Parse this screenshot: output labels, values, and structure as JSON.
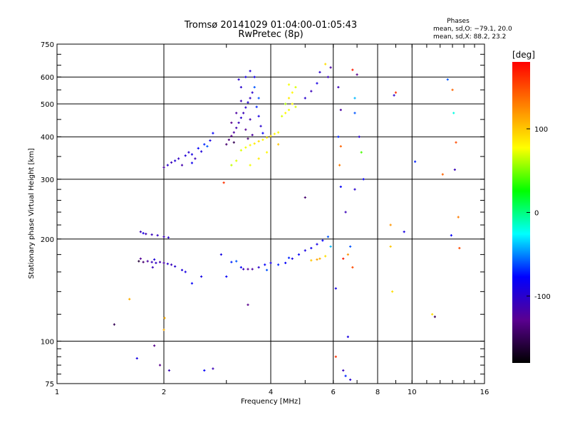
{
  "chart_data": {
    "type": "scatter",
    "title": "Tromsø 20141029 01:04:00-01:05:43",
    "subtitle": "RwPretec (8p)",
    "xlabel": "Frequency [MHz]",
    "ylabel": "Stationary phase Virtual Height [km]",
    "x_scale": "log",
    "y_scale": "log",
    "xlim": [
      1,
      16
    ],
    "ylim": [
      75,
      750
    ],
    "x_ticks": [
      1,
      2,
      4,
      6,
      8,
      10,
      16
    ],
    "y_ticks": [
      75,
      100,
      200,
      300,
      400,
      500,
      600,
      750
    ],
    "grid": true,
    "stats": {
      "heading": "Phases",
      "line_o": "mean, sd,O: −79.1, 20.0",
      "line_x": "mean, sd,X:  88.2, 23.2"
    },
    "colorbar": {
      "unit": "[deg]",
      "range": [
        -180,
        180
      ],
      "ticks": [
        100,
        0,
        -100
      ],
      "colors": [
        "#000000",
        "#5a0090",
        "#0000ff",
        "#00ffff",
        "#00ff00",
        "#ffff00",
        "#ff8000",
        "#ff0000"
      ]
    },
    "series": [
      {
        "points": [
          [
            1.72,
            210,
            -110
          ],
          [
            1.78,
            207,
            -112
          ],
          [
            1.85,
            206,
            -108
          ],
          [
            1.92,
            205,
            -105
          ],
          [
            2.0,
            203,
            -110
          ],
          [
            2.06,
            202,
            -100
          ],
          [
            1.75,
            208,
            -90
          ],
          [
            1.7,
            172,
            -160
          ],
          [
            1.75,
            171,
            -140
          ],
          [
            1.8,
            172,
            -120
          ],
          [
            1.85,
            171,
            -110
          ],
          [
            1.9,
            170,
            -105
          ],
          [
            1.95,
            171,
            -115
          ],
          [
            2.0,
            170,
            -120
          ],
          [
            2.05,
            169,
            -100
          ],
          [
            2.1,
            168,
            -110
          ],
          [
            2.15,
            166,
            -100
          ],
          [
            2.25,
            162,
            -95
          ],
          [
            2.3,
            160,
            -90
          ],
          [
            1.72,
            175,
            -125
          ],
          [
            1.88,
            174,
            -95
          ],
          [
            3.1,
            171,
            -70
          ],
          [
            3.2,
            172,
            -60
          ],
          [
            3.3,
            165,
            -80
          ],
          [
            3.35,
            163,
            -110
          ],
          [
            3.45,
            163,
            -125
          ],
          [
            3.55,
            163,
            -120
          ],
          [
            3.7,
            165,
            -100
          ],
          [
            3.85,
            168,
            -80
          ],
          [
            4.0,
            170,
            -90
          ],
          [
            4.2,
            168,
            -70
          ],
          [
            4.4,
            170,
            -80
          ],
          [
            4.6,
            175,
            -90
          ],
          [
            4.8,
            180,
            -80
          ],
          [
            5.0,
            185,
            -90
          ],
          [
            5.2,
            188,
            -85
          ],
          [
            5.4,
            193,
            -90
          ],
          [
            5.6,
            198,
            -80
          ],
          [
            5.8,
            203,
            -60
          ],
          [
            5.9,
            190,
            -40
          ],
          [
            5.7,
            178,
            90
          ],
          [
            5.5,
            175,
            110
          ],
          [
            5.4,
            174,
            115
          ],
          [
            5.2,
            173,
            100
          ],
          [
            3.9,
            162,
            -60
          ],
          [
            4.5,
            176,
            -70
          ],
          [
            2.05,
            330,
            -100
          ],
          [
            2.1,
            336,
            -110
          ],
          [
            2.15,
            340,
            -95
          ],
          [
            2.0,
            325,
            -120
          ],
          [
            2.2,
            345,
            -105
          ],
          [
            2.3,
            352,
            -95
          ],
          [
            2.35,
            360,
            -100
          ],
          [
            2.4,
            355,
            -90
          ],
          [
            2.5,
            370,
            -80
          ],
          [
            2.55,
            362,
            -95
          ],
          [
            2.6,
            380,
            -70
          ],
          [
            2.45,
            345,
            -110
          ],
          [
            2.7,
            390,
            -90
          ],
          [
            2.65,
            375,
            -60
          ],
          [
            2.75,
            410,
            -80
          ],
          [
            2.4,
            335,
            -85
          ],
          [
            2.25,
            330,
            -115
          ],
          [
            3.0,
            380,
            -140
          ],
          [
            3.05,
            392,
            -135
          ],
          [
            3.1,
            402,
            -130
          ],
          [
            3.15,
            412,
            -120
          ],
          [
            3.2,
            425,
            -115
          ],
          [
            3.25,
            440,
            -110
          ],
          [
            3.3,
            455,
            -100
          ],
          [
            3.35,
            470,
            -110
          ],
          [
            3.4,
            488,
            -100
          ],
          [
            3.45,
            505,
            -95
          ],
          [
            3.5,
            520,
            -105
          ],
          [
            3.55,
            540,
            -100
          ],
          [
            3.3,
            560,
            -100
          ],
          [
            3.4,
            600,
            -90
          ],
          [
            3.5,
            625,
            -95
          ],
          [
            3.6,
            560,
            -60
          ],
          [
            3.65,
            490,
            -70
          ],
          [
            3.7,
            460,
            -90
          ],
          [
            3.75,
            430,
            -100
          ],
          [
            3.8,
            410,
            -80
          ],
          [
            3.2,
            470,
            -120
          ],
          [
            3.1,
            440,
            -130
          ],
          [
            3.3,
            510,
            -110
          ],
          [
            3.4,
            420,
            -125
          ],
          [
            3.6,
            600,
            -85
          ],
          [
            3.25,
            590,
            -100
          ],
          [
            3.5,
            450,
            -115
          ],
          [
            3.15,
            385,
            -150
          ],
          [
            3.45,
            395,
            -140
          ],
          [
            3.55,
            405,
            -120
          ],
          [
            3.7,
            520,
            -60
          ],
          [
            3.3,
            365,
            70
          ],
          [
            3.4,
            372,
            75
          ],
          [
            3.5,
            378,
            80
          ],
          [
            3.6,
            382,
            85
          ],
          [
            3.7,
            388,
            90
          ],
          [
            3.8,
            392,
            80
          ],
          [
            3.9,
            398,
            85
          ],
          [
            4.0,
            402,
            90
          ],
          [
            4.1,
            408,
            80
          ],
          [
            3.2,
            340,
            70
          ],
          [
            3.1,
            330,
            65
          ],
          [
            3.5,
            330,
            75
          ],
          [
            3.7,
            345,
            85
          ],
          [
            3.9,
            360,
            80
          ],
          [
            4.2,
            412,
            75
          ],
          [
            4.3,
            460,
            70
          ],
          [
            4.4,
            470,
            80
          ],
          [
            4.5,
            480,
            75
          ],
          [
            4.6,
            500,
            80
          ],
          [
            4.7,
            490,
            70
          ],
          [
            4.5,
            520,
            85
          ],
          [
            4.6,
            540,
            80
          ],
          [
            4.4,
            500,
            60
          ],
          [
            4.7,
            560,
            70
          ],
          [
            4.5,
            570,
            75
          ],
          [
            5.0,
            520,
            -100
          ],
          [
            5.2,
            545,
            -110
          ],
          [
            5.4,
            575,
            -90
          ],
          [
            5.5,
            620,
            -100
          ],
          [
            5.8,
            600,
            -110
          ],
          [
            5.9,
            640,
            -120
          ],
          [
            5.7,
            655,
            90
          ],
          [
            6.2,
            560,
            -110
          ],
          [
            6.3,
            480,
            -120
          ],
          [
            6.2,
            400,
            -70
          ],
          [
            6.3,
            375,
            140
          ],
          [
            6.25,
            330,
            130
          ],
          [
            6.3,
            285,
            -80
          ],
          [
            6.5,
            240,
            -110
          ],
          [
            6.9,
            280,
            -100
          ],
          [
            6.4,
            175,
            170
          ],
          [
            6.6,
            180,
            120
          ],
          [
            6.8,
            165,
            150
          ],
          [
            6.7,
            190,
            -60
          ],
          [
            6.8,
            630,
            170
          ],
          [
            7.0,
            610,
            -130
          ],
          [
            6.9,
            520,
            -40
          ],
          [
            6.9,
            470,
            -60
          ],
          [
            7.1,
            400,
            -100
          ],
          [
            7.2,
            360,
            40
          ],
          [
            7.3,
            300,
            -80
          ],
          [
            8.7,
            220,
            120
          ],
          [
            8.7,
            190,
            100
          ],
          [
            8.9,
            530,
            -100
          ],
          [
            9.0,
            540,
            160
          ],
          [
            9.5,
            210,
            -90
          ],
          [
            10.2,
            338,
            -70
          ],
          [
            8.8,
            140,
            90
          ],
          [
            11.4,
            120,
            90
          ],
          [
            11.6,
            118,
            -150
          ],
          [
            12.6,
            590,
            -60
          ],
          [
            13.0,
            550,
            140
          ],
          [
            13.1,
            470,
            -20
          ],
          [
            13.2,
            320,
            -110
          ],
          [
            13.3,
            385,
            150
          ],
          [
            13.5,
            232,
            130
          ],
          [
            12.9,
            205,
            -80
          ],
          [
            13.6,
            188,
            150
          ],
          [
            12.2,
            310,
            140
          ],
          [
            1.45,
            112,
            -150
          ],
          [
            1.6,
            133,
            110
          ],
          [
            1.68,
            89,
            -90
          ],
          [
            1.88,
            97,
            -130
          ],
          [
            1.95,
            85,
            -130
          ],
          [
            2.07,
            82,
            -110
          ],
          [
            2.0,
            108,
            110
          ],
          [
            2.01,
            117,
            110
          ],
          [
            2.6,
            82,
            -80
          ],
          [
            2.75,
            83,
            -110
          ],
          [
            2.9,
            180,
            -90
          ],
          [
            2.95,
            293,
            160
          ],
          [
            1.86,
            165,
            -110
          ],
          [
            2.4,
            148,
            -80
          ],
          [
            2.55,
            155,
            -90
          ],
          [
            3.0,
            155,
            -80
          ],
          [
            3.45,
            128,
            -130
          ],
          [
            5.0,
            265,
            -140
          ],
          [
            4.2,
            380,
            100
          ],
          [
            6.1,
            143,
            -90
          ],
          [
            6.6,
            103,
            -90
          ],
          [
            6.1,
            90,
            160
          ],
          [
            6.5,
            79,
            -70
          ],
          [
            6.4,
            82,
            -110
          ],
          [
            6.7,
            77,
            -100
          ]
        ]
      }
    ]
  }
}
